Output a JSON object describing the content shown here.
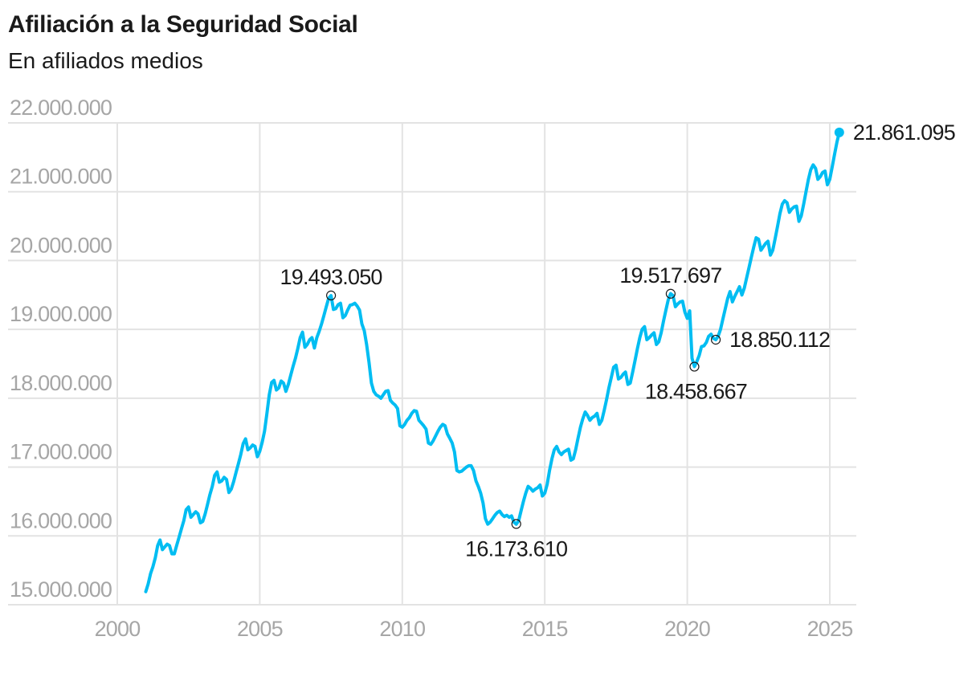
{
  "header": {
    "title": "Afiliación a la Seguridad Social",
    "subtitle": "En afiliados medios"
  },
  "colors": {
    "line": "#00BDF2",
    "grid": "#e3e3e3",
    "tick_text": "#a6a6a6",
    "annotation_text": "#1a1a1a"
  },
  "chart_data": {
    "type": "line",
    "title": "Afiliación a la Seguridad Social",
    "subtitle": "En afiliados medios",
    "xlabel": "",
    "ylabel": "",
    "xlim": [
      2000,
      2025.9
    ],
    "ylim": [
      15000000,
      22000000
    ],
    "grid": true,
    "legend": "none",
    "x_ticks": [
      2000,
      2005,
      2010,
      2015,
      2020,
      2025
    ],
    "x_tick_labels": [
      "2000",
      "2005",
      "2010",
      "2015",
      "2020",
      "2025"
    ],
    "y_ticks": [
      15000000,
      16000000,
      17000000,
      18000000,
      19000000,
      20000000,
      21000000,
      22000000
    ],
    "y_tick_labels": [
      "15.000.000",
      "16.000.000",
      "17.000.000",
      "18.000.000",
      "19.000.000",
      "20.000.000",
      "21.000.000",
      "22.000.000"
    ],
    "series": [
      {
        "name": "Afiliados medios",
        "start": "2001-01",
        "frequency": "monthly",
        "unit": "millions",
        "values": [
          15.19,
          15.3,
          15.45,
          15.55,
          15.68,
          15.86,
          15.94,
          15.8,
          15.84,
          15.88,
          15.86,
          15.74,
          15.74,
          15.86,
          15.98,
          16.1,
          16.22,
          16.38,
          16.42,
          16.27,
          16.31,
          16.35,
          16.32,
          16.19,
          16.21,
          16.32,
          16.46,
          16.6,
          16.72,
          16.88,
          16.93,
          16.78,
          16.8,
          16.85,
          16.82,
          16.63,
          16.68,
          16.79,
          16.92,
          17.05,
          17.18,
          17.34,
          17.41,
          17.25,
          17.28,
          17.32,
          17.3,
          17.15,
          17.23,
          17.36,
          17.52,
          17.78,
          18.05,
          18.23,
          18.26,
          18.12,
          18.15,
          18.25,
          18.22,
          18.1,
          18.2,
          18.33,
          18.46,
          18.58,
          18.72,
          18.88,
          18.96,
          18.74,
          18.78,
          18.85,
          18.88,
          18.73,
          18.88,
          18.97,
          19.08,
          19.2,
          19.33,
          19.45,
          19.49,
          19.29,
          19.3,
          19.36,
          19.38,
          19.17,
          19.2,
          19.28,
          19.35,
          19.36,
          19.38,
          19.34,
          19.28,
          19.08,
          18.98,
          18.78,
          18.52,
          18.22,
          18.1,
          18.05,
          18.03,
          18.0,
          18.05,
          18.1,
          18.11,
          17.97,
          17.93,
          17.9,
          17.85,
          17.6,
          17.58,
          17.62,
          17.68,
          17.72,
          17.78,
          17.82,
          17.81,
          17.68,
          17.64,
          17.6,
          17.55,
          17.35,
          17.33,
          17.38,
          17.45,
          17.52,
          17.58,
          17.62,
          17.6,
          17.48,
          17.42,
          17.35,
          17.22,
          16.95,
          16.93,
          16.94,
          16.97,
          17.0,
          17.02,
          17.02,
          16.95,
          16.8,
          16.72,
          16.62,
          16.48,
          16.25,
          16.17,
          16.2,
          16.25,
          16.3,
          16.34,
          16.36,
          16.31,
          16.28,
          16.3,
          16.27,
          16.29,
          16.2,
          16.17,
          16.22,
          16.36,
          16.5,
          16.62,
          16.72,
          16.69,
          16.65,
          16.68,
          16.7,
          16.74,
          16.58,
          16.62,
          16.75,
          16.95,
          17.12,
          17.25,
          17.3,
          17.22,
          17.18,
          17.22,
          17.24,
          17.26,
          17.1,
          17.12,
          17.25,
          17.42,
          17.58,
          17.7,
          17.8,
          17.75,
          17.68,
          17.72,
          17.74,
          17.78,
          17.62,
          17.68,
          17.82,
          17.98,
          18.15,
          18.3,
          18.45,
          18.48,
          18.28,
          18.3,
          18.35,
          18.38,
          18.2,
          18.22,
          18.38,
          18.55,
          18.72,
          18.88,
          19.0,
          19.04,
          18.85,
          18.88,
          18.92,
          18.95,
          18.78,
          18.82,
          18.95,
          19.12,
          19.28,
          19.43,
          19.52,
          19.49,
          19.33,
          19.37,
          19.4,
          19.41,
          19.25,
          19.16,
          19.27,
          18.58,
          18.46,
          18.53,
          18.62,
          18.75,
          18.76,
          18.81,
          18.9,
          18.93,
          18.87,
          18.85,
          18.9,
          19.0,
          19.15,
          19.3,
          19.45,
          19.55,
          19.4,
          19.48,
          19.55,
          19.62,
          19.5,
          19.6,
          19.75,
          19.9,
          20.05,
          20.2,
          20.33,
          20.31,
          20.15,
          20.2,
          20.25,
          20.28,
          20.08,
          20.15,
          20.32,
          20.5,
          20.68,
          20.82,
          20.87,
          20.84,
          20.7,
          20.75,
          20.78,
          20.79,
          20.57,
          20.65,
          20.82,
          21.0,
          21.18,
          21.32,
          21.39,
          21.34,
          21.18,
          21.22,
          21.28,
          21.3,
          21.1,
          21.18,
          21.36,
          21.54,
          21.72,
          21.861095
        ]
      }
    ],
    "annotations": [
      {
        "label": "19.493.050",
        "date": "2007-07",
        "value": 19493050,
        "marker": "circle",
        "label_position": "above"
      },
      {
        "label": "16.173.610",
        "date": "2014-01",
        "value": 16173610,
        "marker": "circle",
        "label_position": "below"
      },
      {
        "label": "19.517.697",
        "date": "2019-06",
        "value": 19517697,
        "marker": "circle",
        "label_position": "above"
      },
      {
        "label": "18.458.667",
        "date": "2020-04",
        "value": 18458667,
        "marker": "circle",
        "label_position": "below"
      },
      {
        "label": "18.850.112",
        "date": "2021-01",
        "value": 18850112,
        "marker": "circle",
        "label_position": "right"
      },
      {
        "label": "21.861.095",
        "date": "2025-05",
        "value": 21861095,
        "marker": "dot",
        "label_position": "right"
      }
    ]
  }
}
